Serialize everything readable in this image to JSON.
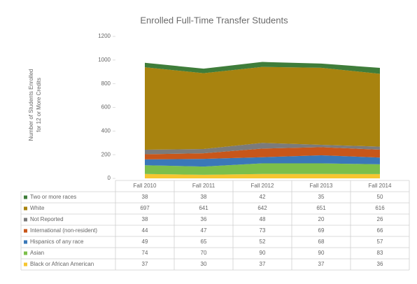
{
  "chart_data": {
    "type": "stacked_area",
    "title": "Enrolled Full-Time Transfer Students",
    "y_label_lines": [
      "Number of Students Enrolled",
      "for 12 or More Credits"
    ],
    "categories": [
      "Fall 2010",
      "Fall 2011",
      "Fall 2012",
      "Fall 2013",
      "Fall 2014"
    ],
    "series": [
      {
        "name": "Two or more races",
        "color": "#3f7d3a",
        "values": [
          38,
          38,
          42,
          35,
          50
        ]
      },
      {
        "name": "White",
        "color": "#a8830f",
        "values": [
          697,
          641,
          642,
          651,
          616
        ]
      },
      {
        "name": "Not Reported",
        "color": "#7b7b7b",
        "values": [
          38,
          36,
          48,
          20,
          26
        ]
      },
      {
        "name": "International (non-resident)",
        "color": "#c8561a",
        "values": [
          44,
          47,
          73,
          69,
          66
        ]
      },
      {
        "name": "Hispanics of any race",
        "color": "#3a78b8",
        "values": [
          49,
          65,
          52,
          68,
          57
        ]
      },
      {
        "name": "Asian",
        "color": "#7cbf4a",
        "values": [
          74,
          70,
          90,
          90,
          83
        ]
      },
      {
        "name": "Black or African American",
        "color": "#f6c630",
        "values": [
          37,
          30,
          37,
          37,
          36
        ]
      }
    ],
    "ylim": [
      0,
      1200
    ],
    "yticks": [
      0,
      200,
      400,
      600,
      800,
      1000,
      1200
    ],
    "grid": false
  }
}
